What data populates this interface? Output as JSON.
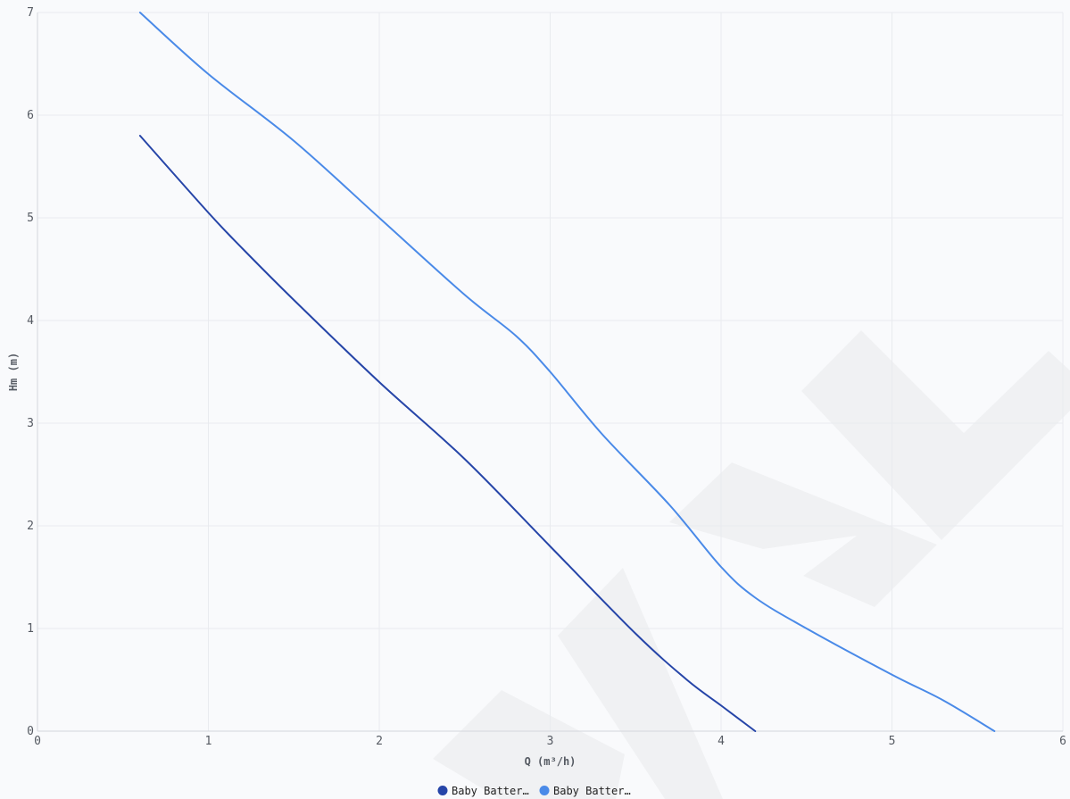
{
  "chart_data": {
    "type": "line",
    "xlabel": "Q (m³/h)",
    "ylabel": "Hm (m)",
    "xlim": [
      0,
      6
    ],
    "ylim": [
      0,
      7
    ],
    "x_ticks": [
      "0",
      "1",
      "2",
      "3",
      "4",
      "5",
      "6"
    ],
    "y_ticks": [
      "0",
      "1",
      "2",
      "3",
      "4",
      "5",
      "6",
      "7"
    ],
    "grid": true,
    "legend_position": "bottom-center",
    "series": [
      {
        "name": "Baby Batter…",
        "color": "#2645a8",
        "points": [
          [
            0.6,
            5.8
          ],
          [
            1.0,
            5.05
          ],
          [
            1.2,
            4.7
          ],
          [
            1.5,
            4.2
          ],
          [
            2.0,
            3.4
          ],
          [
            2.5,
            2.65
          ],
          [
            3.0,
            1.8
          ],
          [
            3.5,
            0.95
          ],
          [
            3.8,
            0.5
          ],
          [
            4.0,
            0.25
          ],
          [
            4.2,
            0.0
          ]
        ]
      },
      {
        "name": "Baby Batter…",
        "color": "#4a8ae8",
        "points": [
          [
            0.6,
            7.0
          ],
          [
            1.0,
            6.4
          ],
          [
            1.5,
            5.75
          ],
          [
            2.0,
            5.0
          ],
          [
            2.5,
            4.25
          ],
          [
            2.8,
            3.85
          ],
          [
            3.0,
            3.5
          ],
          [
            3.3,
            2.9
          ],
          [
            3.7,
            2.2
          ],
          [
            4.0,
            1.6
          ],
          [
            4.2,
            1.3
          ],
          [
            4.5,
            1.0
          ],
          [
            5.0,
            0.55
          ],
          [
            5.3,
            0.3
          ],
          [
            5.6,
            0.0
          ]
        ]
      }
    ]
  },
  "watermark_icon": "brand-logo-watermark"
}
